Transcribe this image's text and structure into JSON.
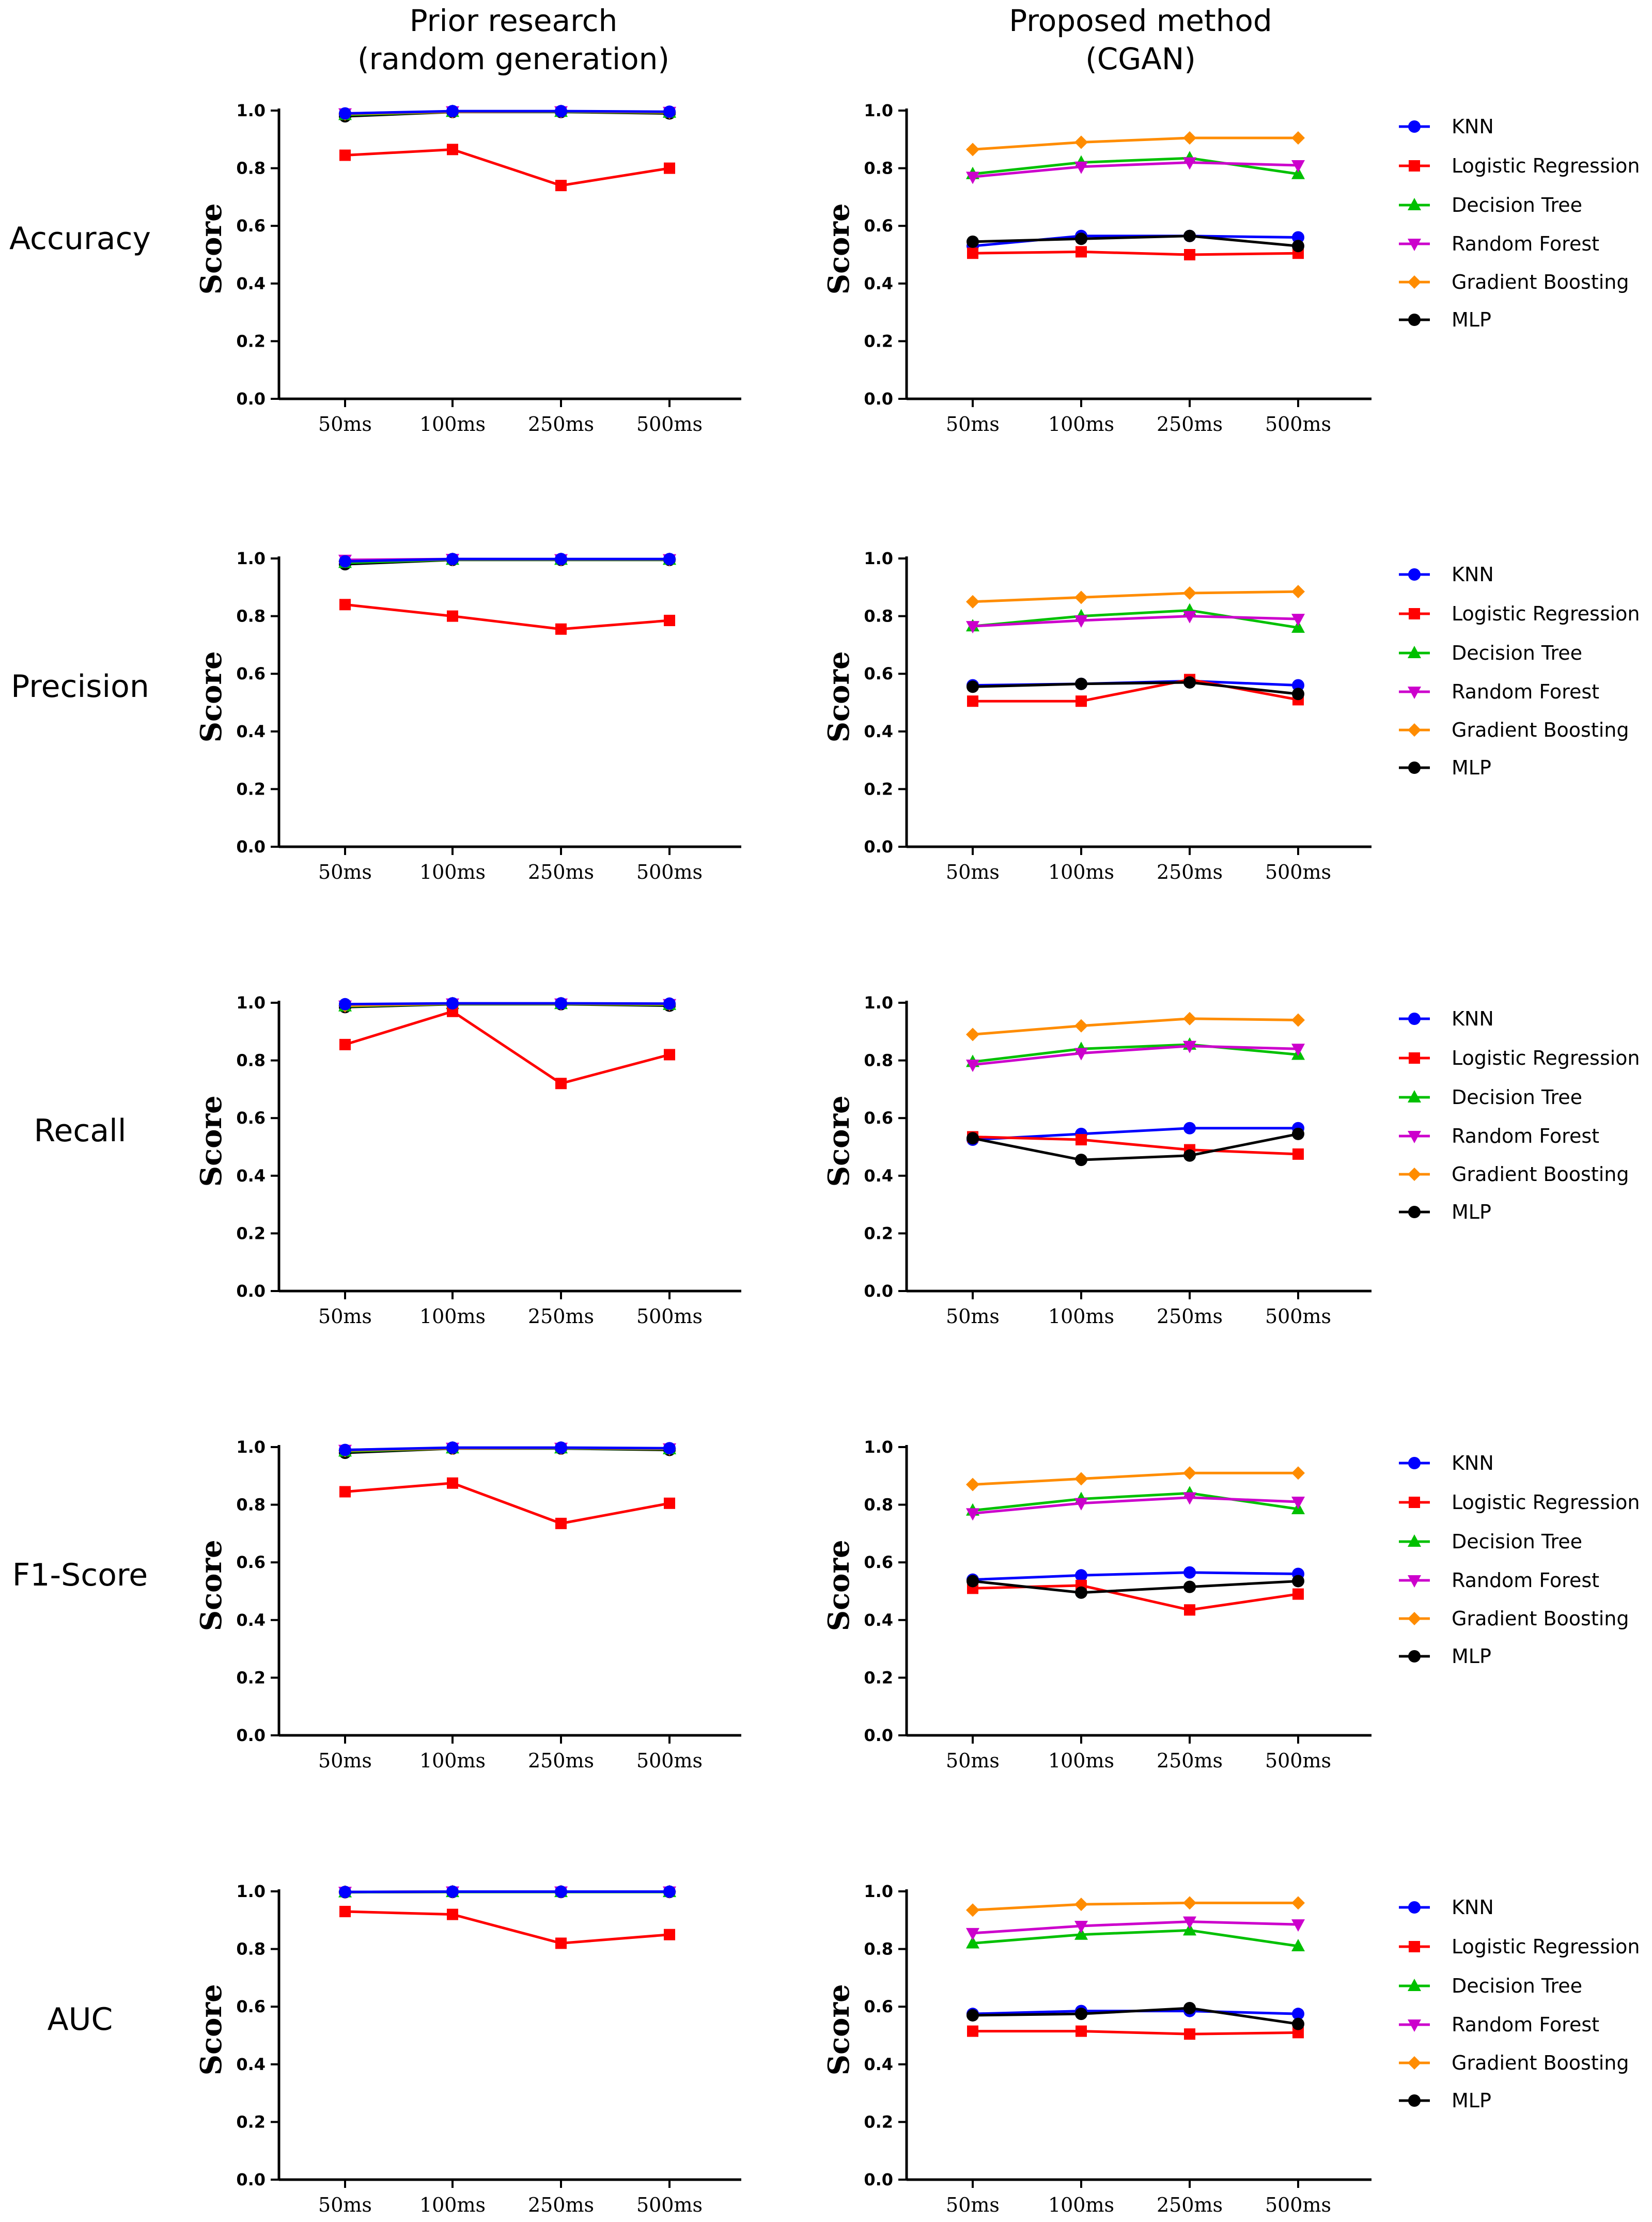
{
  "column_titles": {
    "prior": [
      "Prior research",
      "(random generation)"
    ],
    "proposed": [
      "Proposed method",
      "(CGAN)"
    ]
  },
  "series_styles": [
    {
      "name": "KNN",
      "color": "#0000ff",
      "marker": "circle"
    },
    {
      "name": "Logistic Regression",
      "color": "#ff0000",
      "marker": "square"
    },
    {
      "name": "Decision Tree",
      "color": "#00c000",
      "marker": "triangle-up"
    },
    {
      "name": "Random Forest",
      "color": "#cc00cc",
      "marker": "triangle-down"
    },
    {
      "name": "Gradient Boosting",
      "color": "#ff8c00",
      "marker": "diamond"
    },
    {
      "name": "MLP",
      "color": "#000000",
      "marker": "circle"
    }
  ],
  "chart_data": [
    {
      "type": "line",
      "metric": "Accuracy",
      "panel": "prior",
      "ylabel": "Score",
      "ylim": [
        0,
        1
      ],
      "yticks": [
        "0.0",
        "0.2",
        "0.4",
        "0.6",
        "0.8",
        "1.0"
      ],
      "categories": [
        "50ms",
        "100ms",
        "250ms",
        "500ms"
      ],
      "series": [
        {
          "name": "MLP",
          "values": [
            0.98,
            0.995,
            0.995,
            0.99
          ]
        },
        {
          "name": "Random Forest",
          "values": [
            0.99,
            0.997,
            0.997,
            0.995
          ]
        },
        {
          "name": "Decision Tree",
          "values": [
            0.985,
            0.996,
            0.996,
            0.993
          ]
        },
        {
          "name": "Gradient Boosting",
          "values": [
            0.988,
            0.996,
            0.997,
            0.994
          ]
        },
        {
          "name": "Logistic Regression",
          "values": [
            0.845,
            0.865,
            0.74,
            0.8
          ]
        },
        {
          "name": "KNN",
          "values": [
            0.99,
            0.998,
            0.998,
            0.996
          ]
        }
      ]
    },
    {
      "type": "line",
      "metric": "Accuracy",
      "panel": "proposed",
      "ylabel": "Score",
      "ylim": [
        0,
        1
      ],
      "yticks": [
        "0.0",
        "0.2",
        "0.4",
        "0.6",
        "0.8",
        "1.0"
      ],
      "categories": [
        "50ms",
        "100ms",
        "250ms",
        "500ms"
      ],
      "series": [
        {
          "name": "KNN",
          "values": [
            0.53,
            0.565,
            0.565,
            0.56
          ]
        },
        {
          "name": "Logistic Regression",
          "values": [
            0.505,
            0.51,
            0.5,
            0.505
          ]
        },
        {
          "name": "Decision Tree",
          "values": [
            0.78,
            0.82,
            0.835,
            0.78
          ]
        },
        {
          "name": "Random Forest",
          "values": [
            0.77,
            0.805,
            0.82,
            0.81
          ]
        },
        {
          "name": "Gradient Boosting",
          "values": [
            0.865,
            0.89,
            0.905,
            0.905
          ]
        },
        {
          "name": "MLP",
          "values": [
            0.545,
            0.555,
            0.565,
            0.53
          ]
        }
      ]
    },
    {
      "type": "line",
      "metric": "Precision",
      "panel": "prior",
      "ylabel": "Score",
      "ylim": [
        0,
        1
      ],
      "yticks": [
        "0.0",
        "0.2",
        "0.4",
        "0.6",
        "0.8",
        "1.0"
      ],
      "categories": [
        "50ms",
        "100ms",
        "250ms",
        "500ms"
      ],
      "series": [
        {
          "name": "MLP",
          "values": [
            0.98,
            0.995,
            0.995,
            0.995
          ]
        },
        {
          "name": "Random Forest",
          "values": [
            0.995,
            0.998,
            0.997,
            0.997
          ]
        },
        {
          "name": "Decision Tree",
          "values": [
            0.985,
            0.996,
            0.996,
            0.996
          ]
        },
        {
          "name": "Gradient Boosting",
          "values": [
            0.99,
            0.997,
            0.997,
            0.997
          ]
        },
        {
          "name": "Logistic Regression",
          "values": [
            0.84,
            0.8,
            0.755,
            0.785
          ]
        },
        {
          "name": "KNN",
          "values": [
            0.99,
            0.998,
            0.998,
            0.998
          ]
        }
      ]
    },
    {
      "type": "line",
      "metric": "Precision",
      "panel": "proposed",
      "ylabel": "Score",
      "ylim": [
        0,
        1
      ],
      "yticks": [
        "0.0",
        "0.2",
        "0.4",
        "0.6",
        "0.8",
        "1.0"
      ],
      "categories": [
        "50ms",
        "100ms",
        "250ms",
        "500ms"
      ],
      "series": [
        {
          "name": "KNN",
          "values": [
            0.56,
            0.565,
            0.575,
            0.56
          ]
        },
        {
          "name": "Logistic Regression",
          "values": [
            0.505,
            0.505,
            0.58,
            0.51
          ]
        },
        {
          "name": "Decision Tree",
          "values": [
            0.765,
            0.8,
            0.82,
            0.76
          ]
        },
        {
          "name": "Random Forest",
          "values": [
            0.765,
            0.785,
            0.8,
            0.79
          ]
        },
        {
          "name": "Gradient Boosting",
          "values": [
            0.85,
            0.865,
            0.88,
            0.885
          ]
        },
        {
          "name": "MLP",
          "values": [
            0.555,
            0.565,
            0.57,
            0.53
          ]
        }
      ]
    },
    {
      "type": "line",
      "metric": "Recall",
      "panel": "prior",
      "ylabel": "Score",
      "ylim": [
        0,
        1
      ],
      "yticks": [
        "0.0",
        "0.2",
        "0.4",
        "0.6",
        "0.8",
        "1.0"
      ],
      "categories": [
        "50ms",
        "100ms",
        "250ms",
        "500ms"
      ],
      "series": [
        {
          "name": "MLP",
          "values": [
            0.985,
            0.995,
            0.995,
            0.99
          ]
        },
        {
          "name": "Random Forest",
          "values": [
            0.99,
            0.997,
            0.997,
            0.995
          ]
        },
        {
          "name": "Decision Tree",
          "values": [
            0.988,
            0.996,
            0.996,
            0.993
          ]
        },
        {
          "name": "Gradient Boosting",
          "values": [
            0.99,
            0.997,
            0.997,
            0.995
          ]
        },
        {
          "name": "Logistic Regression",
          "values": [
            0.855,
            0.97,
            0.72,
            0.82
          ]
        },
        {
          "name": "KNN",
          "values": [
            0.995,
            0.998,
            0.998,
            0.997
          ]
        }
      ]
    },
    {
      "type": "line",
      "metric": "Recall",
      "panel": "proposed",
      "ylabel": "Score",
      "ylim": [
        0,
        1
      ],
      "yticks": [
        "0.0",
        "0.2",
        "0.4",
        "0.6",
        "0.8",
        "1.0"
      ],
      "categories": [
        "50ms",
        "100ms",
        "250ms",
        "500ms"
      ],
      "series": [
        {
          "name": "KNN",
          "values": [
            0.525,
            0.545,
            0.565,
            0.565
          ]
        },
        {
          "name": "Logistic Regression",
          "values": [
            0.535,
            0.525,
            0.49,
            0.475
          ]
        },
        {
          "name": "Decision Tree",
          "values": [
            0.795,
            0.84,
            0.855,
            0.82
          ]
        },
        {
          "name": "Random Forest",
          "values": [
            0.785,
            0.825,
            0.85,
            0.84
          ]
        },
        {
          "name": "Gradient Boosting",
          "values": [
            0.89,
            0.92,
            0.945,
            0.94
          ]
        },
        {
          "name": "MLP",
          "values": [
            0.53,
            0.455,
            0.47,
            0.545
          ]
        }
      ]
    },
    {
      "type": "line",
      "metric": "F1-Score",
      "panel": "prior",
      "ylabel": "Score",
      "ylim": [
        0,
        1
      ],
      "yticks": [
        "0.0",
        "0.2",
        "0.4",
        "0.6",
        "0.8",
        "1.0"
      ],
      "categories": [
        "50ms",
        "100ms",
        "250ms",
        "500ms"
      ],
      "series": [
        {
          "name": "MLP",
          "values": [
            0.98,
            0.995,
            0.995,
            0.99
          ]
        },
        {
          "name": "Random Forest",
          "values": [
            0.99,
            0.997,
            0.997,
            0.995
          ]
        },
        {
          "name": "Decision Tree",
          "values": [
            0.985,
            0.996,
            0.996,
            0.993
          ]
        },
        {
          "name": "Gradient Boosting",
          "values": [
            0.988,
            0.996,
            0.997,
            0.994
          ]
        },
        {
          "name": "Logistic Regression",
          "values": [
            0.845,
            0.875,
            0.735,
            0.805
          ]
        },
        {
          "name": "KNN",
          "values": [
            0.99,
            0.998,
            0.998,
            0.996
          ]
        }
      ]
    },
    {
      "type": "line",
      "metric": "F1-Score",
      "panel": "proposed",
      "ylabel": "Score",
      "ylim": [
        0,
        1
      ],
      "yticks": [
        "0.0",
        "0.2",
        "0.4",
        "0.6",
        "0.8",
        "1.0"
      ],
      "categories": [
        "50ms",
        "100ms",
        "250ms",
        "500ms"
      ],
      "series": [
        {
          "name": "KNN",
          "values": [
            0.54,
            0.555,
            0.565,
            0.56
          ]
        },
        {
          "name": "Logistic Regression",
          "values": [
            0.51,
            0.52,
            0.435,
            0.49
          ]
        },
        {
          "name": "Decision Tree",
          "values": [
            0.78,
            0.82,
            0.84,
            0.785
          ]
        },
        {
          "name": "Random Forest",
          "values": [
            0.77,
            0.805,
            0.825,
            0.81
          ]
        },
        {
          "name": "Gradient Boosting",
          "values": [
            0.87,
            0.89,
            0.91,
            0.91
          ]
        },
        {
          "name": "MLP",
          "values": [
            0.535,
            0.495,
            0.515,
            0.535
          ]
        }
      ]
    },
    {
      "type": "line",
      "metric": "AUC",
      "panel": "prior",
      "ylabel": "Score",
      "ylim": [
        0,
        1
      ],
      "yticks": [
        "0.0",
        "0.2",
        "0.4",
        "0.6",
        "0.8",
        "1.0"
      ],
      "categories": [
        "50ms",
        "100ms",
        "250ms",
        "500ms"
      ],
      "series": [
        {
          "name": "MLP",
          "values": [
            0.997,
            0.998,
            0.998,
            0.998
          ]
        },
        {
          "name": "Random Forest",
          "values": [
            0.998,
            0.999,
            0.999,
            0.999
          ]
        },
        {
          "name": "Decision Tree",
          "values": [
            0.997,
            0.998,
            0.998,
            0.998
          ]
        },
        {
          "name": "Gradient Boosting",
          "values": [
            0.998,
            0.999,
            0.999,
            0.999
          ]
        },
        {
          "name": "Logistic Regression",
          "values": [
            0.93,
            0.92,
            0.82,
            0.85
          ]
        },
        {
          "name": "KNN",
          "values": [
            0.998,
            0.999,
            0.999,
            0.999
          ]
        }
      ]
    },
    {
      "type": "line",
      "metric": "AUC",
      "panel": "proposed",
      "ylabel": "Score",
      "ylim": [
        0,
        1
      ],
      "yticks": [
        "0.0",
        "0.2",
        "0.4",
        "0.6",
        "0.8",
        "1.0"
      ],
      "categories": [
        "50ms",
        "100ms",
        "250ms",
        "500ms"
      ],
      "series": [
        {
          "name": "KNN",
          "values": [
            0.575,
            0.585,
            0.585,
            0.575
          ]
        },
        {
          "name": "Logistic Regression",
          "values": [
            0.515,
            0.515,
            0.505,
            0.51
          ]
        },
        {
          "name": "Decision Tree",
          "values": [
            0.82,
            0.85,
            0.865,
            0.81
          ]
        },
        {
          "name": "Random Forest",
          "values": [
            0.855,
            0.88,
            0.895,
            0.885
          ]
        },
        {
          "name": "Gradient Boosting",
          "values": [
            0.935,
            0.955,
            0.96,
            0.96
          ]
        },
        {
          "name": "MLP",
          "values": [
            0.57,
            0.575,
            0.595,
            0.54
          ]
        }
      ]
    }
  ]
}
